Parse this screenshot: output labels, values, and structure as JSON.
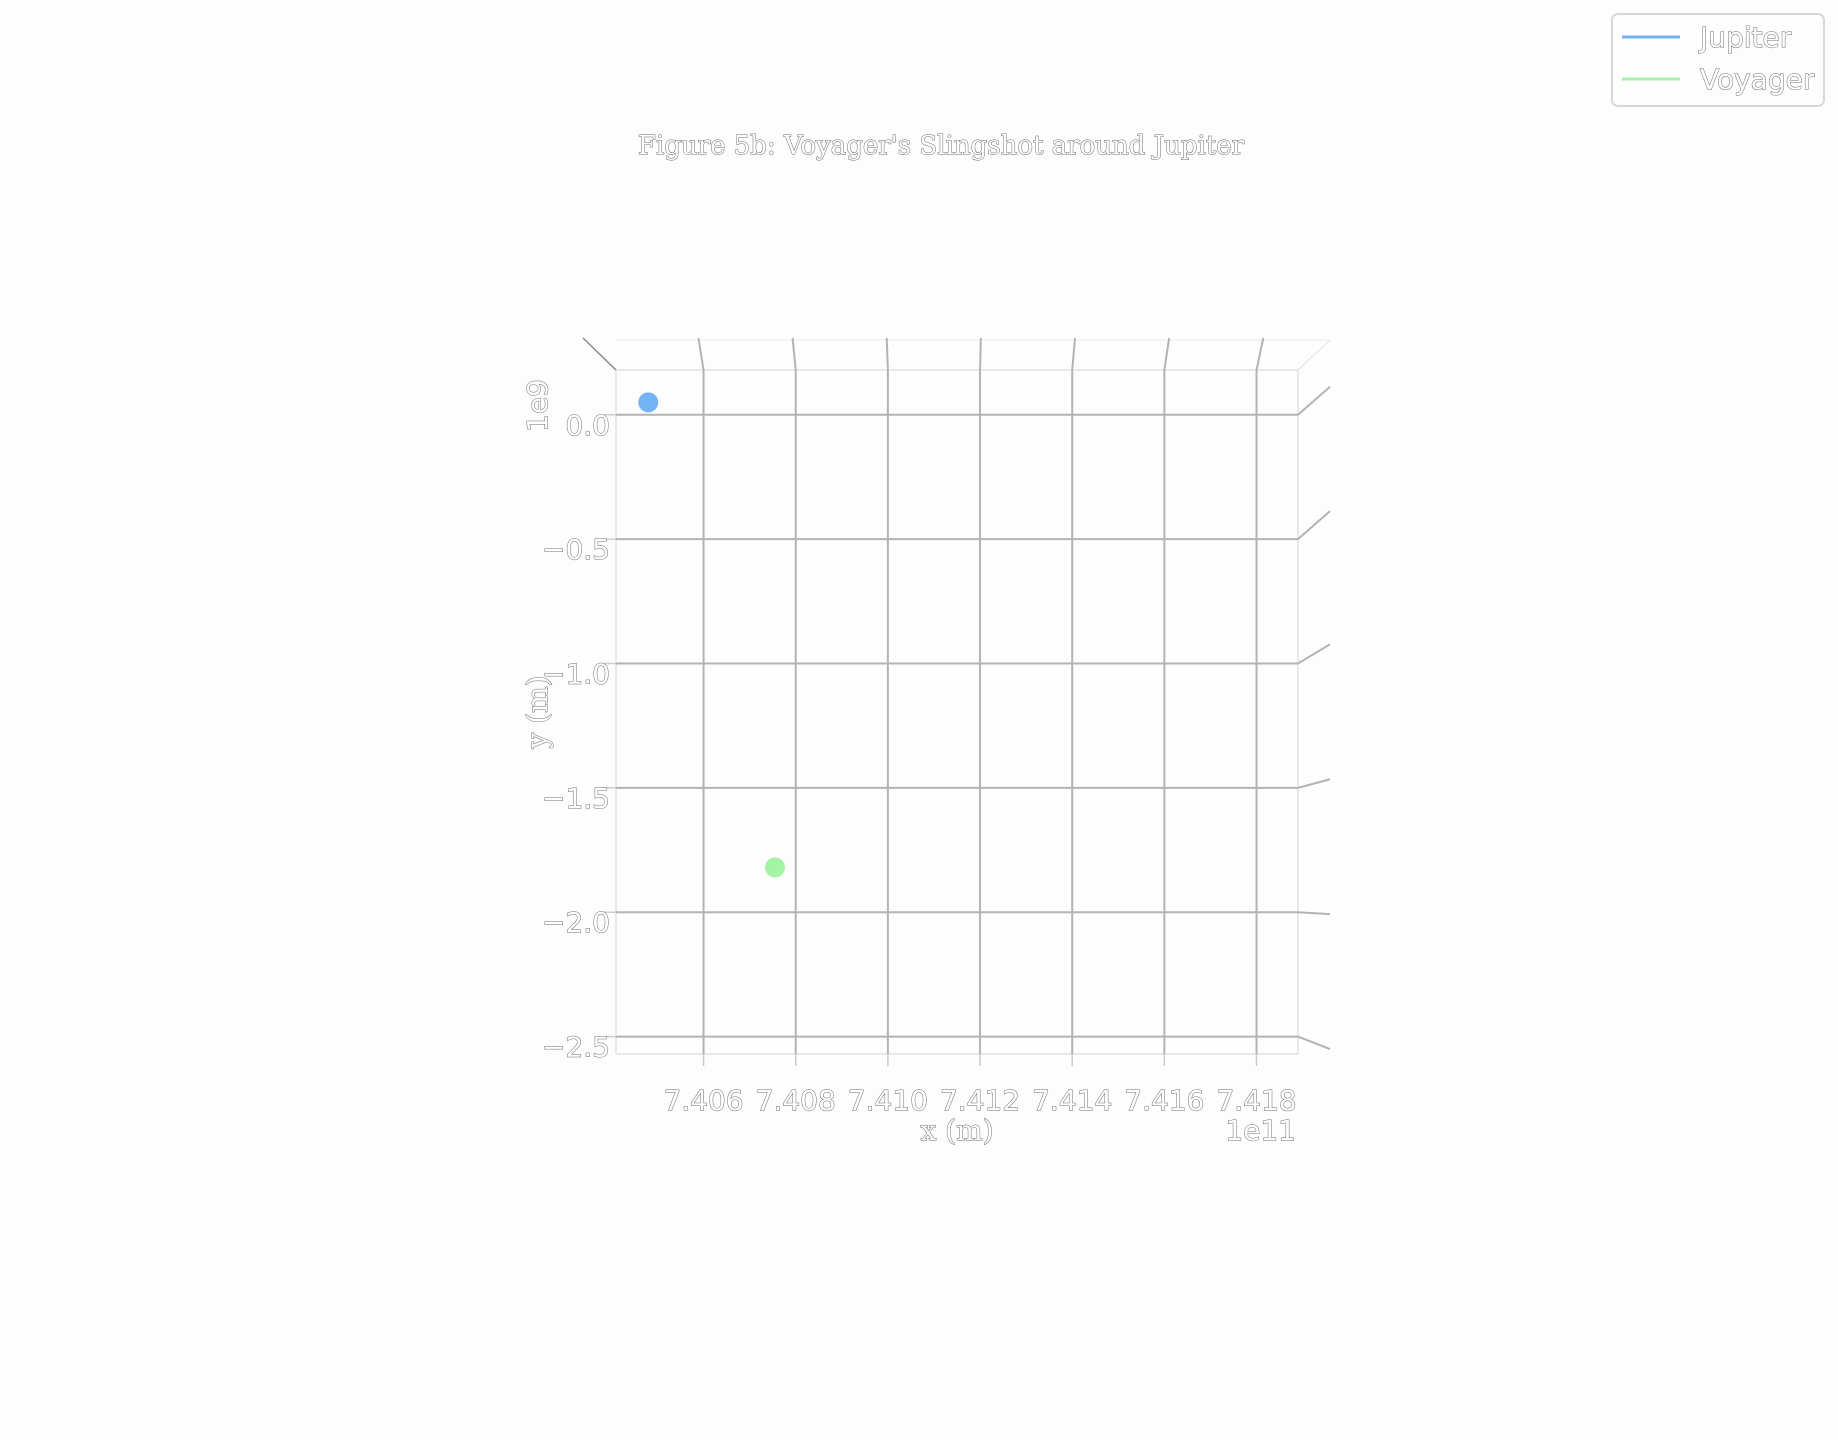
{
  "chart_data": {
    "type": "scatter",
    "title": "Figure 5b: Voyager's Slingshot around Jupiter",
    "xlabel": "x (m)",
    "ylabel": "y (m)",
    "x_offset_text": "1e11",
    "y_offset_text": "1e9",
    "xlim": [
      7.4041,
      7.4189
    ],
    "ylim": [
      -2.57,
      0.18
    ],
    "x_ticks": [
      7.406,
      7.408,
      7.41,
      7.412,
      7.414,
      7.416,
      7.418
    ],
    "x_tick_labels": [
      "7.406",
      "7.408",
      "7.410",
      "7.412",
      "7.414",
      "7.416",
      "7.418"
    ],
    "y_ticks": [
      0.0,
      -0.5,
      -1.0,
      -1.5,
      -2.0,
      -2.5
    ],
    "y_tick_labels": [
      "0.0",
      "−0.5",
      "−1.0",
      "−1.5",
      "−2.0",
      "−2.5"
    ],
    "grid": true,
    "view": "3d-top-down",
    "legend_position": "top-right",
    "series": [
      {
        "name": "Jupiter",
        "color": "#74b4f4",
        "x": [
          7.4048
        ],
        "y": [
          0.05
        ]
      },
      {
        "name": "Voyager",
        "color": "#a4f4a4",
        "x": [
          7.40755
        ],
        "y": [
          -1.82
        ]
      }
    ]
  }
}
